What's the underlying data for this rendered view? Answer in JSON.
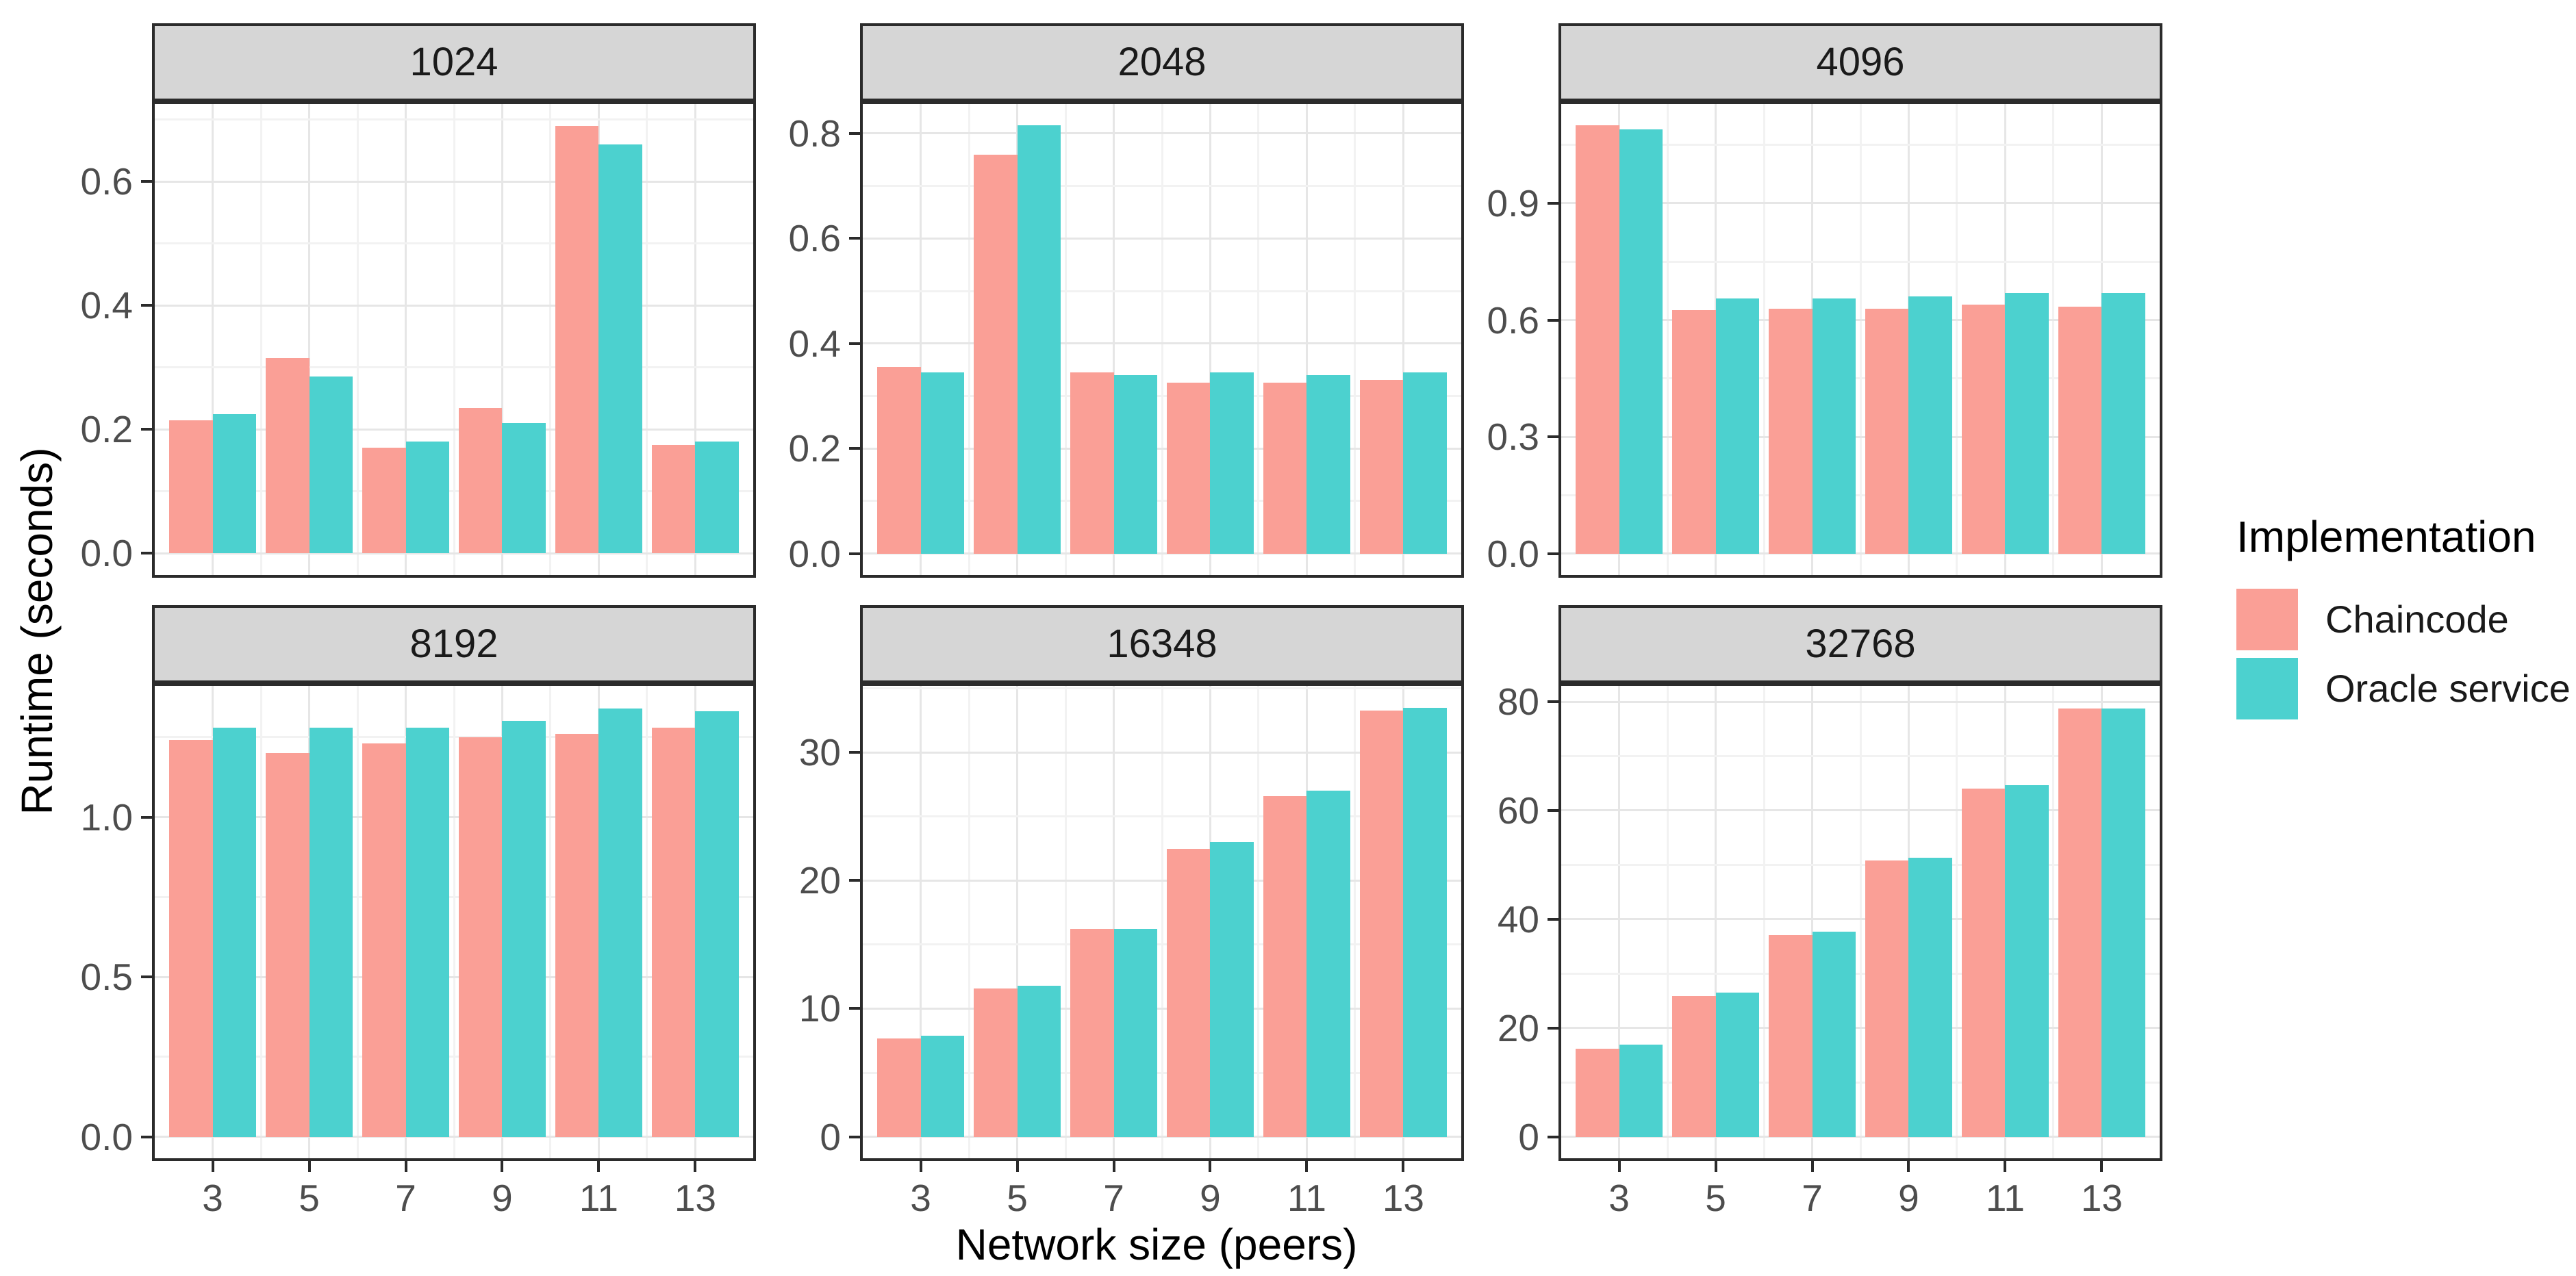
{
  "figure": {
    "y_axis_title": "Runtime (seconds)",
    "x_axis_title": "Network size (peers)"
  },
  "legend": {
    "title": "Implementation",
    "items": [
      {
        "label": "Chaincode",
        "color": "#FA9F96"
      },
      {
        "label": "Oracle service",
        "color": "#4CD1CF"
      }
    ]
  },
  "chart_data": {
    "type": "bar",
    "layout": "faceted 2x3, dodged bars, free y scales, legend right, light gray grid on white panels",
    "title": "",
    "xlabel": "Network size (peers)",
    "ylabel": "Runtime (seconds)",
    "legend_title": "Implementation",
    "x": [
      3,
      5,
      7,
      9,
      11,
      13
    ],
    "x_tick_labels": [
      "3",
      "5",
      "7",
      "9",
      "11",
      "13"
    ],
    "series_names": [
      "Chaincode",
      "Oracle service"
    ],
    "series_colors": {
      "Chaincode": "#FA9F96",
      "Oracle service": "#4CD1CF"
    },
    "panels": [
      {
        "facet": "1024",
        "ylim": [
          -0.035,
          0.725
        ],
        "y_ticks": [
          0,
          0.2,
          0.4,
          0.6
        ],
        "y_tick_labels": [
          "0.0",
          "0.2",
          "0.4",
          "0.6"
        ],
        "series": [
          {
            "name": "Chaincode",
            "values": [
              0.215,
              0.315,
              0.17,
              0.235,
              0.69,
              0.175
            ]
          },
          {
            "name": "Oracle service",
            "values": [
              0.225,
              0.285,
              0.18,
              0.21,
              0.66,
              0.18
            ]
          }
        ]
      },
      {
        "facet": "2048",
        "ylim": [
          -0.041,
          0.856
        ],
        "y_ticks": [
          0,
          0.2,
          0.4,
          0.6,
          0.8
        ],
        "y_tick_labels": [
          "0.0",
          "0.2",
          "0.4",
          "0.6",
          "0.8"
        ],
        "series": [
          {
            "name": "Chaincode",
            "values": [
              0.355,
              0.76,
              0.345,
              0.325,
              0.325,
              0.33
            ]
          },
          {
            "name": "Oracle service",
            "values": [
              0.345,
              0.815,
              0.34,
              0.345,
              0.34,
              0.345
            ]
          }
        ]
      },
      {
        "facet": "4096",
        "ylim": [
          -0.055,
          1.155
        ],
        "y_ticks": [
          0,
          0.3,
          0.6,
          0.9
        ],
        "y_tick_labels": [
          "0.0",
          "0.3",
          "0.6",
          "0.9"
        ],
        "series": [
          {
            "name": "Chaincode",
            "values": [
              1.1,
              0.625,
              0.63,
              0.63,
              0.64,
              0.635
            ]
          },
          {
            "name": "Oracle service",
            "values": [
              1.09,
              0.655,
              0.655,
              0.66,
              0.67,
              0.67
            ]
          }
        ]
      },
      {
        "facet": "8192",
        "ylim": [
          -0.067,
          1.41
        ],
        "y_ticks": [
          0,
          0.5,
          1.0
        ],
        "y_tick_labels": [
          "0.0",
          "0.5",
          "1.0"
        ],
        "series": [
          {
            "name": "Chaincode",
            "values": [
              1.24,
              1.2,
              1.23,
              1.25,
              1.26,
              1.28
            ]
          },
          {
            "name": "Oracle service",
            "values": [
              1.28,
              1.28,
              1.28,
              1.3,
              1.34,
              1.33
            ]
          }
        ]
      },
      {
        "facet": "16348",
        "ylim": [
          -1.68,
          35.2
        ],
        "y_ticks": [
          0,
          10,
          20,
          30
        ],
        "y_tick_labels": [
          "0",
          "10",
          "20",
          "30"
        ],
        "series": [
          {
            "name": "Chaincode",
            "values": [
              7.7,
              11.6,
              16.2,
              22.5,
              26.6,
              33.3
            ]
          },
          {
            "name": "Oracle service",
            "values": [
              7.9,
              11.8,
              16.2,
              23.0,
              27.0,
              33.5
            ]
          }
        ]
      },
      {
        "facet": "32768",
        "ylim": [
          -3.95,
          82.9
        ],
        "y_ticks": [
          0,
          20,
          40,
          60,
          80
        ],
        "y_tick_labels": [
          "0",
          "20",
          "40",
          "60",
          "80"
        ],
        "series": [
          {
            "name": "Chaincode",
            "values": [
              16.2,
              25.9,
              37.1,
              50.8,
              64.0,
              78.8
            ]
          },
          {
            "name": "Oracle service",
            "values": [
              16.9,
              26.5,
              37.7,
              51.3,
              64.6,
              78.8
            ]
          }
        ]
      }
    ]
  }
}
